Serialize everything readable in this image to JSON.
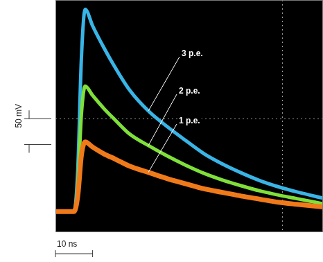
{
  "chart_data": {
    "type": "line",
    "x": [
      0,
      5,
      6,
      7,
      8,
      10,
      13,
      16,
      20,
      25,
      30,
      35,
      40,
      45,
      50,
      55,
      60,
      65,
      72
    ],
    "series": [
      {
        "name": "1 p.e.",
        "color": "#f07a1a",
        "values": [
          0,
          0,
          30,
          110,
          135,
          125,
          112,
          102,
          88,
          76,
          64,
          54,
          44,
          37,
          30,
          24,
          18,
          14,
          9
        ]
      },
      {
        "name": "2 p.e.",
        "color": "#7fe03a",
        "values": [
          0,
          0,
          50,
          190,
          243,
          225,
          200,
          178,
          150,
          128,
          108,
          90,
          74,
          61,
          50,
          40,
          32,
          25,
          15
        ]
      },
      {
        "name": "3 p.e.",
        "color": "#39b4e6",
        "values": [
          0,
          0,
          80,
          300,
          392,
          360,
          318,
          280,
          235,
          195,
          165,
          138,
          112,
          92,
          75,
          60,
          48,
          38,
          26
        ]
      }
    ],
    "xlim": [
      0,
      72
    ],
    "ylim": [
      -40,
      410
    ],
    "xticks": [
      61
    ],
    "yticks": [
      180
    ],
    "grid": true,
    "tick_labels": false,
    "scale_bars": [
      {
        "axis": "y",
        "value": 50,
        "label": "50 mV"
      },
      {
        "axis": "x",
        "value": 10,
        "label": "10 ns"
      }
    ]
  }
}
